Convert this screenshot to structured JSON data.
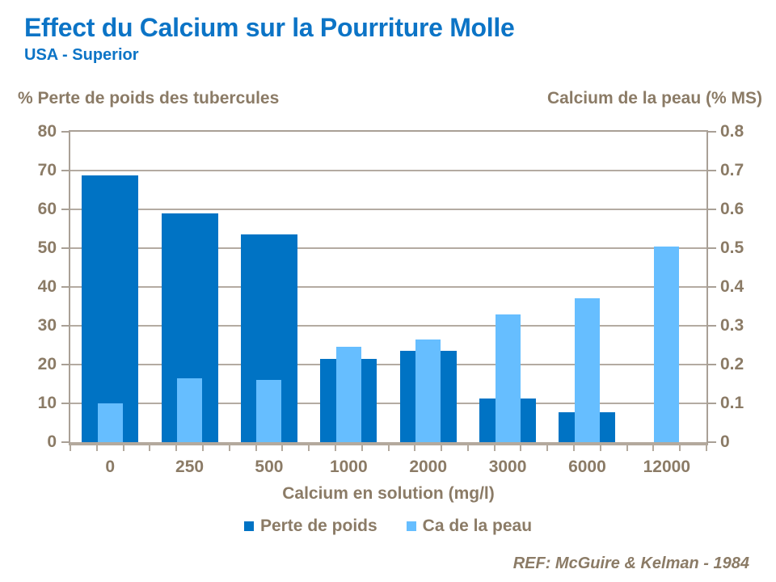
{
  "header": {
    "title": "Effect du Calcium sur la Pourriture Molle",
    "subtitle": "USA - Superior"
  },
  "footer": {
    "reference": "REF: McGuire & Kelman - 1984"
  },
  "colors": {
    "title_blue": "#0C74C6",
    "text_brown": "#8B7B66",
    "gridline": "#B4ABA2",
    "axis_line": "#A9A096",
    "axis_bottom_line": "#B3A99D",
    "bar_dark_blue": "#0073C4",
    "bar_light_blue": "#66BEFF"
  },
  "chart_data": {
    "type": "bar",
    "title": "Effect du Calcium sur la Pourriture Molle",
    "subtitle": "USA - Superior",
    "categories": [
      "0",
      "250",
      "500",
      "1000",
      "2000",
      "3000",
      "6000",
      "12000"
    ],
    "xlabel": "Calcium en solution (mg/l)",
    "grid": true,
    "legend_position": "bottom",
    "left_axis": {
      "label": "% Perte de poids des tubercules",
      "range": [
        0,
        80
      ],
      "ticks": [
        "80",
        "70",
        "60",
        "50",
        "40",
        "30",
        "20",
        "10",
        "0"
      ]
    },
    "right_axis": {
      "label": "Calcium de la peau (% MS)",
      "range": [
        0,
        0.8
      ],
      "ticks": [
        "0.8",
        "0.7",
        "0.6",
        "0.5",
        "0.4",
        "0.3",
        "0.2",
        "0.1",
        "0"
      ]
    },
    "series": [
      {
        "name": "Perte de poids",
        "axis": "left",
        "color": "#0073C4",
        "values": [
          68.8,
          59,
          53.5,
          21.5,
          23.5,
          11.3,
          7.8,
          null
        ]
      },
      {
        "name": "Ca de la peau",
        "axis": "right",
        "color": "#66BEFF",
        "values": [
          0.1,
          0.165,
          0.16,
          0.245,
          0.265,
          0.33,
          0.37,
          0.505
        ]
      }
    ]
  }
}
